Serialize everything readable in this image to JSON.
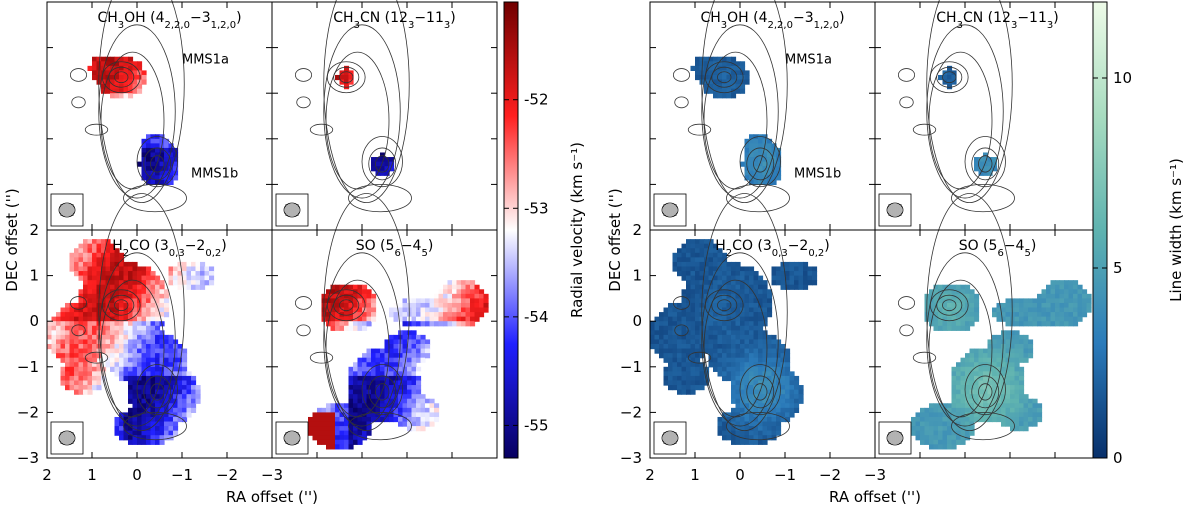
{
  "chart_data": {
    "type": "heatmap",
    "groups": [
      {
        "name": "radial-velocity",
        "colorbar": {
          "label": "Radial velocity (km s⁻¹)",
          "ticks": [
            "-52",
            "-53",
            "-54",
            "-55"
          ],
          "tick_values": [
            -52,
            -53,
            -54,
            -55
          ],
          "range": [
            -55.3,
            -51.1
          ],
          "colors": [
            "#080060",
            "#2020ff",
            "#ffffff",
            "#ff2020",
            "#700000"
          ]
        },
        "panels": [
          {
            "title_main": "CH",
            "title_sub": "3",
            "title_rest": "OH (4",
            "title_sub2": "2,2,0",
            "title_mid": "−3",
            "title_sub3": "1,2,0",
            "title_end": ")",
            "annotations": [
              "MMS1a",
              "MMS1b"
            ]
          },
          {
            "title_main": "CH",
            "title_sub": "3",
            "title_rest": "CN (12",
            "title_sub2": "3",
            "title_mid": "−11",
            "title_sub3": "3",
            "title_end": ")",
            "annotations": []
          },
          {
            "title_main": "H",
            "title_sub": "2",
            "title_rest": "CO (3",
            "title_sub2": "0,3",
            "title_mid": "−2",
            "title_sub3": "0,2",
            "title_end": ")",
            "annotations": []
          },
          {
            "title_main": "SO (5",
            "title_sub": "6",
            "title_rest": "−4",
            "title_sub2": "5",
            "title_mid": ")",
            "title_sub3": "",
            "title_end": "",
            "annotations": []
          }
        ]
      },
      {
        "name": "line-width",
        "colorbar": {
          "label": "Line width (km s⁻¹)",
          "ticks": [
            "0",
            "5",
            "10"
          ],
          "tick_values": [
            0,
            5,
            10
          ],
          "range": [
            0,
            12
          ],
          "colors": [
            "#08306b",
            "#2b7bba",
            "#5fb3b0",
            "#a8dcc0",
            "#eefbe8"
          ]
        },
        "panels": [
          {
            "title_main": "CH",
            "title_sub": "3",
            "title_rest": "OH (4",
            "title_sub2": "2,2,0",
            "title_mid": "−3",
            "title_sub3": "1,2,0",
            "title_end": ")",
            "annotations": [
              "MMS1a",
              "MMS1b"
            ]
          },
          {
            "title_main": "CH",
            "title_sub": "3",
            "title_rest": "CN (12",
            "title_sub2": "3",
            "title_mid": "−11",
            "title_sub3": "3",
            "title_end": ")",
            "annotations": []
          },
          {
            "title_main": "H",
            "title_sub": "2",
            "title_rest": "CO (3",
            "title_sub2": "0,3",
            "title_mid": "−2",
            "title_sub3": "0,2",
            "title_end": ")",
            "annotations": []
          },
          {
            "title_main": "SO (5",
            "title_sub": "6",
            "title_rest": "−4",
            "title_sub2": "5",
            "title_mid": ")",
            "title_sub3": "",
            "title_end": "",
            "annotations": []
          }
        ]
      }
    ],
    "xlabel": "RA offset ('')",
    "ylabel": "DEC offset ('')",
    "xticks": [
      "2",
      "1",
      "0",
      "−1",
      "−2",
      "−3"
    ],
    "xtick_values": [
      2,
      1,
      0,
      -1,
      -2,
      -3
    ],
    "yticks": [
      "2",
      "1",
      "0",
      "−1",
      "−2",
      "−3"
    ],
    "ytick_values": [
      2,
      1,
      0,
      -1,
      -2,
      -3
    ],
    "xlim": [
      2,
      -3
    ],
    "ylim": [
      -3,
      2
    ]
  }
}
